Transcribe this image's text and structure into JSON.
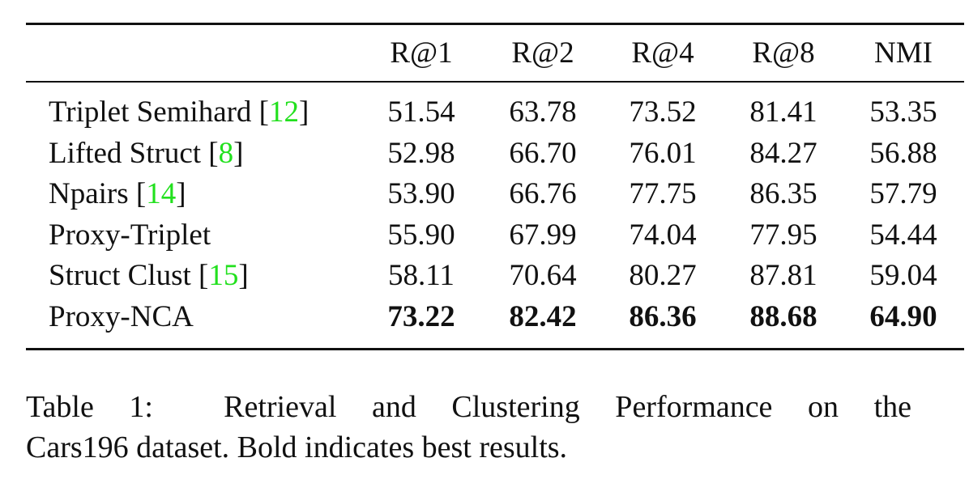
{
  "table": {
    "header": [
      "R@1",
      "R@2",
      "R@4",
      "R@8",
      "NMI"
    ],
    "rows": [
      {
        "method": [
          "Triplet Semihard [",
          "12",
          "]"
        ],
        "values": [
          "51.54",
          "63.78",
          "73.52",
          "81.41",
          "53.35"
        ],
        "bold": false
      },
      {
        "method": [
          "Lifted Struct [",
          "8",
          "]"
        ],
        "values": [
          "52.98",
          "66.70",
          "76.01",
          "84.27",
          "56.88"
        ],
        "bold": false
      },
      {
        "method": [
          "Npairs [",
          "14",
          "]"
        ],
        "values": [
          "53.90",
          "66.76",
          "77.75",
          "86.35",
          "57.79"
        ],
        "bold": false
      },
      {
        "method": [
          "Proxy-Triplet"
        ],
        "values": [
          "55.90",
          "67.99",
          "74.04",
          "77.95",
          "54.44"
        ],
        "bold": false
      },
      {
        "method": [
          "Struct Clust [",
          "15",
          "]"
        ],
        "values": [
          "58.11",
          "70.64",
          "80.27",
          "87.81",
          "59.04"
        ],
        "bold": false
      },
      {
        "method": [
          "Proxy-NCA"
        ],
        "values": [
          "73.22",
          "82.42",
          "86.36",
          "88.68",
          "64.90"
        ],
        "bold": true
      }
    ]
  },
  "caption": {
    "lines": [
      "Table 1:  Retrieval and Clustering Performance on the",
      "Cars196 dataset. Bold indicates best results."
    ]
  }
}
